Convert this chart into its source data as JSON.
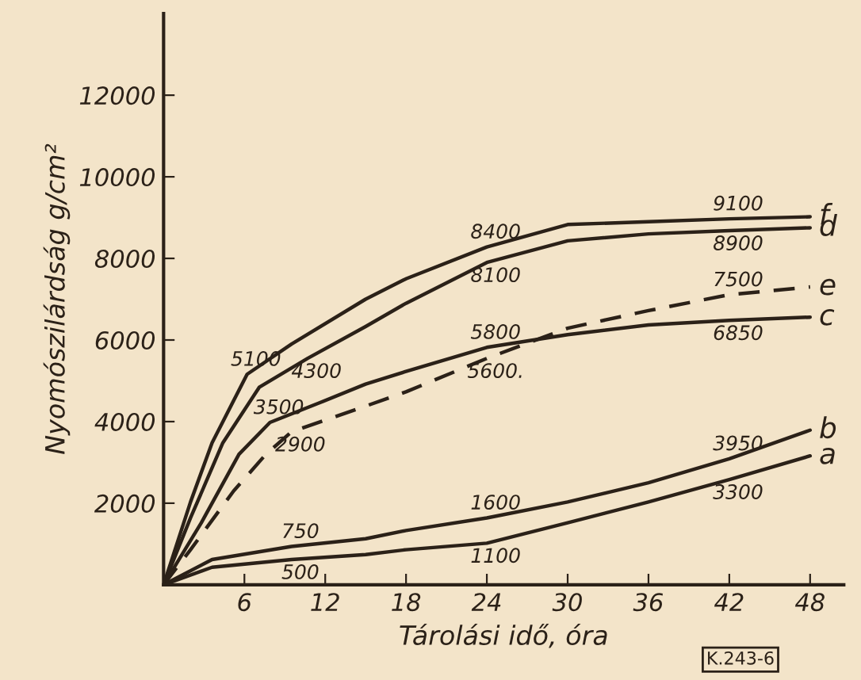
{
  "chart_data": {
    "type": "line",
    "xlabel": "Tárolási idő, óra",
    "ylabel": "Nyomószilárdság g/cm²",
    "xlim": [
      0,
      50.5
    ],
    "ylim": [
      0,
      14000
    ],
    "xticks": [
      6,
      12,
      18,
      24,
      30,
      36,
      42,
      48
    ],
    "yticks": [
      2000,
      4000,
      6000,
      8000,
      10000,
      12000
    ],
    "grid": false,
    "legend": false,
    "marker": "none",
    "series": [
      {
        "name": "f",
        "color": "#2b2118",
        "line_style": "solid",
        "x": [
          0,
          2,
          3.6,
          6.2,
          9.5,
          15,
          18,
          24,
          30,
          36,
          42,
          48
        ],
        "values": [
          0,
          2030,
          3480,
          5160,
          5900,
          7000,
          7500,
          8280,
          8830,
          8900,
          8970,
          9020
        ]
      },
      {
        "name": "d",
        "color": "#2b2118",
        "line_style": "solid",
        "x": [
          0,
          2,
          4.4,
          7.1,
          10.7,
          15,
          18,
          24,
          30,
          36,
          42,
          48
        ],
        "values": [
          0,
          1640,
          3480,
          4840,
          5550,
          6330,
          6900,
          7900,
          8430,
          8600,
          8680,
          8750
        ]
      },
      {
        "name": "e",
        "color": "#2b2118",
        "line_style": "dashed",
        "x": [
          0,
          2,
          5.2,
          7.6,
          9.5,
          15,
          18,
          24,
          30,
          36,
          42,
          48
        ],
        "values": [
          0,
          860,
          2300,
          3200,
          3750,
          4380,
          4730,
          5550,
          6290,
          6720,
          7110,
          7300
        ]
      },
      {
        "name": "c",
        "color": "#2b2118",
        "line_style": "solid",
        "x": [
          0,
          2.8,
          5.6,
          7.9,
          11.5,
          15,
          18,
          24,
          30,
          36,
          42,
          48
        ],
        "values": [
          0,
          1520,
          3200,
          3980,
          4450,
          4920,
          5230,
          5820,
          6130,
          6370,
          6480,
          6560
        ]
      },
      {
        "name": "b",
        "color": "#2b2118",
        "line_style": "solid",
        "x": [
          0,
          3.6,
          9.5,
          15,
          18,
          24,
          30,
          36,
          42,
          48
        ],
        "values": [
          0,
          620,
          940,
          1130,
          1330,
          1640,
          2030,
          2500,
          3090,
          3790
        ]
      },
      {
        "name": "a",
        "color": "#2b2118",
        "line_style": "solid",
        "x": [
          0,
          3.6,
          9.5,
          15,
          18,
          24,
          30,
          36,
          42,
          48
        ],
        "values": [
          0,
          430,
          620,
          740,
          860,
          1020,
          1520,
          2030,
          2580,
          3160
        ]
      }
    ],
    "annotations": [
      {
        "text": "5100",
        "x": 6.2,
        "y": 5160
      },
      {
        "text": "4300",
        "x": 10.7,
        "y": 5550
      },
      {
        "text": "3500",
        "x": 7.9,
        "y": 3980
      },
      {
        "text": "2900",
        "x": 9.5,
        "y": 3750
      },
      {
        "text": "750",
        "x": 9.5,
        "y": 940
      },
      {
        "text": "500",
        "x": 9.5,
        "y": 620
      },
      {
        "text": "8400",
        "x": 24,
        "y": 8280
      },
      {
        "text": "8100",
        "x": 24,
        "y": 7900
      },
      {
        "text": "5800",
        "x": 24,
        "y": 5820
      },
      {
        "text": "5600.",
        "x": 24,
        "y": 5550
      },
      {
        "text": "1600",
        "x": 24,
        "y": 1640
      },
      {
        "text": "1100",
        "x": 24,
        "y": 1020
      },
      {
        "text": "9100",
        "x": 42,
        "y": 8970
      },
      {
        "text": "8900",
        "x": 42,
        "y": 8680
      },
      {
        "text": "7500",
        "x": 42,
        "y": 7110
      },
      {
        "text": "6850",
        "x": 42,
        "y": 6480
      },
      {
        "text": "3950",
        "x": 42,
        "y": 3090
      },
      {
        "text": "3300",
        "x": 42,
        "y": 2580
      },
      "K.243-6"
    ]
  }
}
